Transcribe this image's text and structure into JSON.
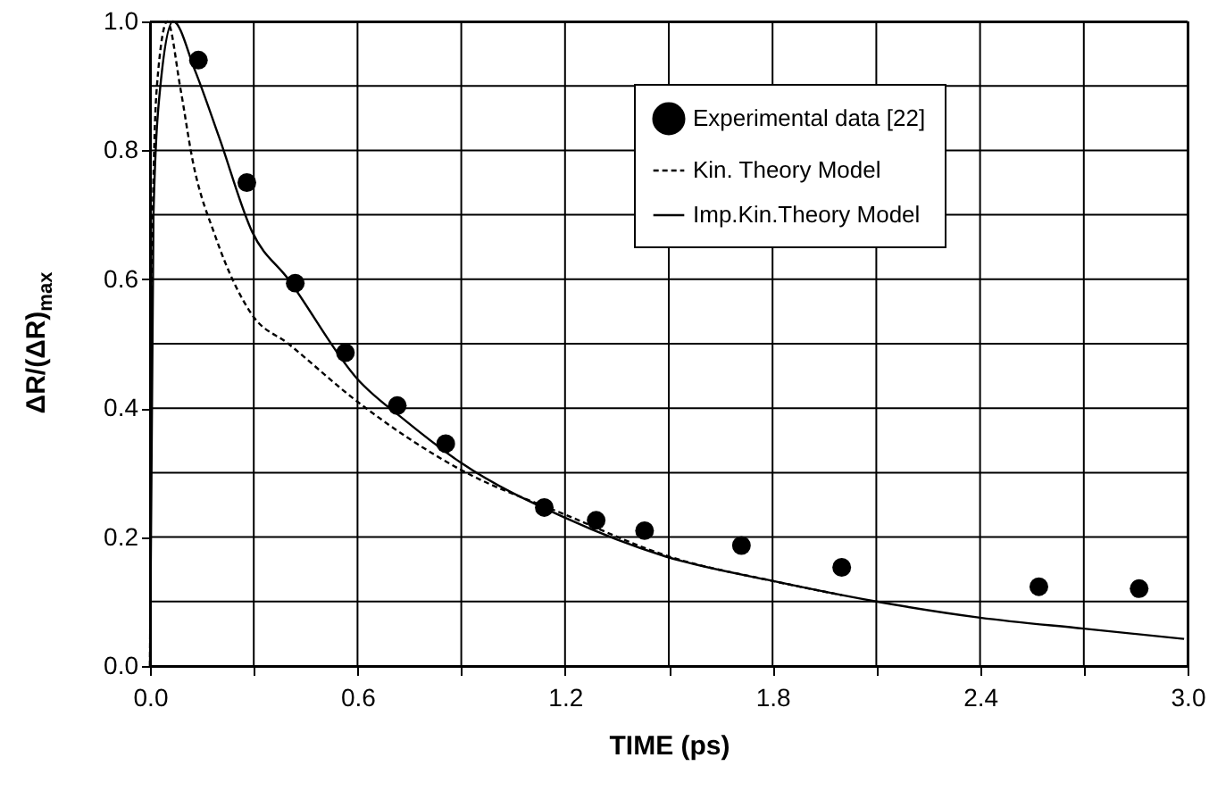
{
  "chart_data": {
    "type": "scatter",
    "xlabel": "TIME (ps)",
    "ylabel": "ΔR/(ΔR)$_{max}$",
    "xlim": [
      0,
      3.0
    ],
    "ylim": [
      0,
      1.0
    ],
    "xticks": [
      {
        "value": 0,
        "label": "0.0"
      },
      {
        "value": 0.3,
        "label": null
      },
      {
        "value": 0.6,
        "label": "0.6"
      },
      {
        "value": 0.9,
        "label": null
      },
      {
        "value": 1.2,
        "label": "1.2"
      },
      {
        "value": 1.5,
        "label": null
      },
      {
        "value": 1.8,
        "label": "1.8"
      },
      {
        "value": 2.1,
        "label": null
      },
      {
        "value": 2.4,
        "label": "2.4"
      },
      {
        "value": 2.7,
        "label": null
      },
      {
        "value": 3.0,
        "label": "3.0"
      }
    ],
    "yticks": [
      {
        "value": 0,
        "label": "0.0"
      },
      {
        "value": 0.1,
        "label": null
      },
      {
        "value": 0.2,
        "label": "0.2"
      },
      {
        "value": 0.3,
        "label": null
      },
      {
        "value": 0.4,
        "label": "0.4"
      },
      {
        "value": 0.5,
        "label": null
      },
      {
        "value": 0.6,
        "label": "0.6"
      },
      {
        "value": 0.7,
        "label": null
      },
      {
        "value": 0.8,
        "label": "0.8"
      },
      {
        "value": 0.9,
        "label": null
      },
      {
        "value": 1.0,
        "label": "1.0"
      }
    ],
    "grid": true,
    "legend": "top right",
    "series": [
      {
        "name": "Experimental data [22]",
        "marker": "circle",
        "color": "#000000",
        "x": [
          0.14,
          0.28,
          0.42,
          0.565,
          0.715,
          0.855,
          1.14,
          1.29,
          1.43,
          1.71,
          2.0,
          2.57,
          2.86
        ],
        "values": [
          0.94,
          0.75,
          0.594,
          0.486,
          0.404,
          0.345,
          0.246,
          0.226,
          0.21,
          0.187,
          0.153,
          0.123,
          0.12
        ]
      },
      {
        "name": "Kin. Theory Model",
        "type": "line",
        "line_style": "dashed",
        "color": "#000000",
        "x": [
          0,
          0.005,
          0.02,
          0.05,
          0.088,
          0.123,
          0.19,
          0.295,
          0.4,
          0.6,
          0.9,
          1.2,
          1.5,
          1.8,
          2.0
        ],
        "values": [
          0,
          0.6,
          0.9,
          1.0,
          0.896,
          0.785,
          0.665,
          0.545,
          0.5,
          0.41,
          0.304,
          0.235,
          0.17,
          0.132,
          0.11
        ]
      },
      {
        "name": "Imp.Kin.Theory Model",
        "type": "line",
        "line_style": "solid",
        "color": "#000000",
        "x": [
          0,
          0.01,
          0.03,
          0.067,
          0.13,
          0.2,
          0.295,
          0.4,
          0.6,
          0.74,
          0.9,
          1.2,
          1.49,
          1.8,
          2.1,
          2.4,
          2.7,
          2.99
        ],
        "values": [
          0,
          0.7,
          0.9,
          1.0,
          0.924,
          0.82,
          0.674,
          0.6,
          0.445,
          0.38,
          0.315,
          0.23,
          0.17,
          0.132,
          0.1,
          0.075,
          0.058,
          0.042
        ]
      }
    ]
  }
}
